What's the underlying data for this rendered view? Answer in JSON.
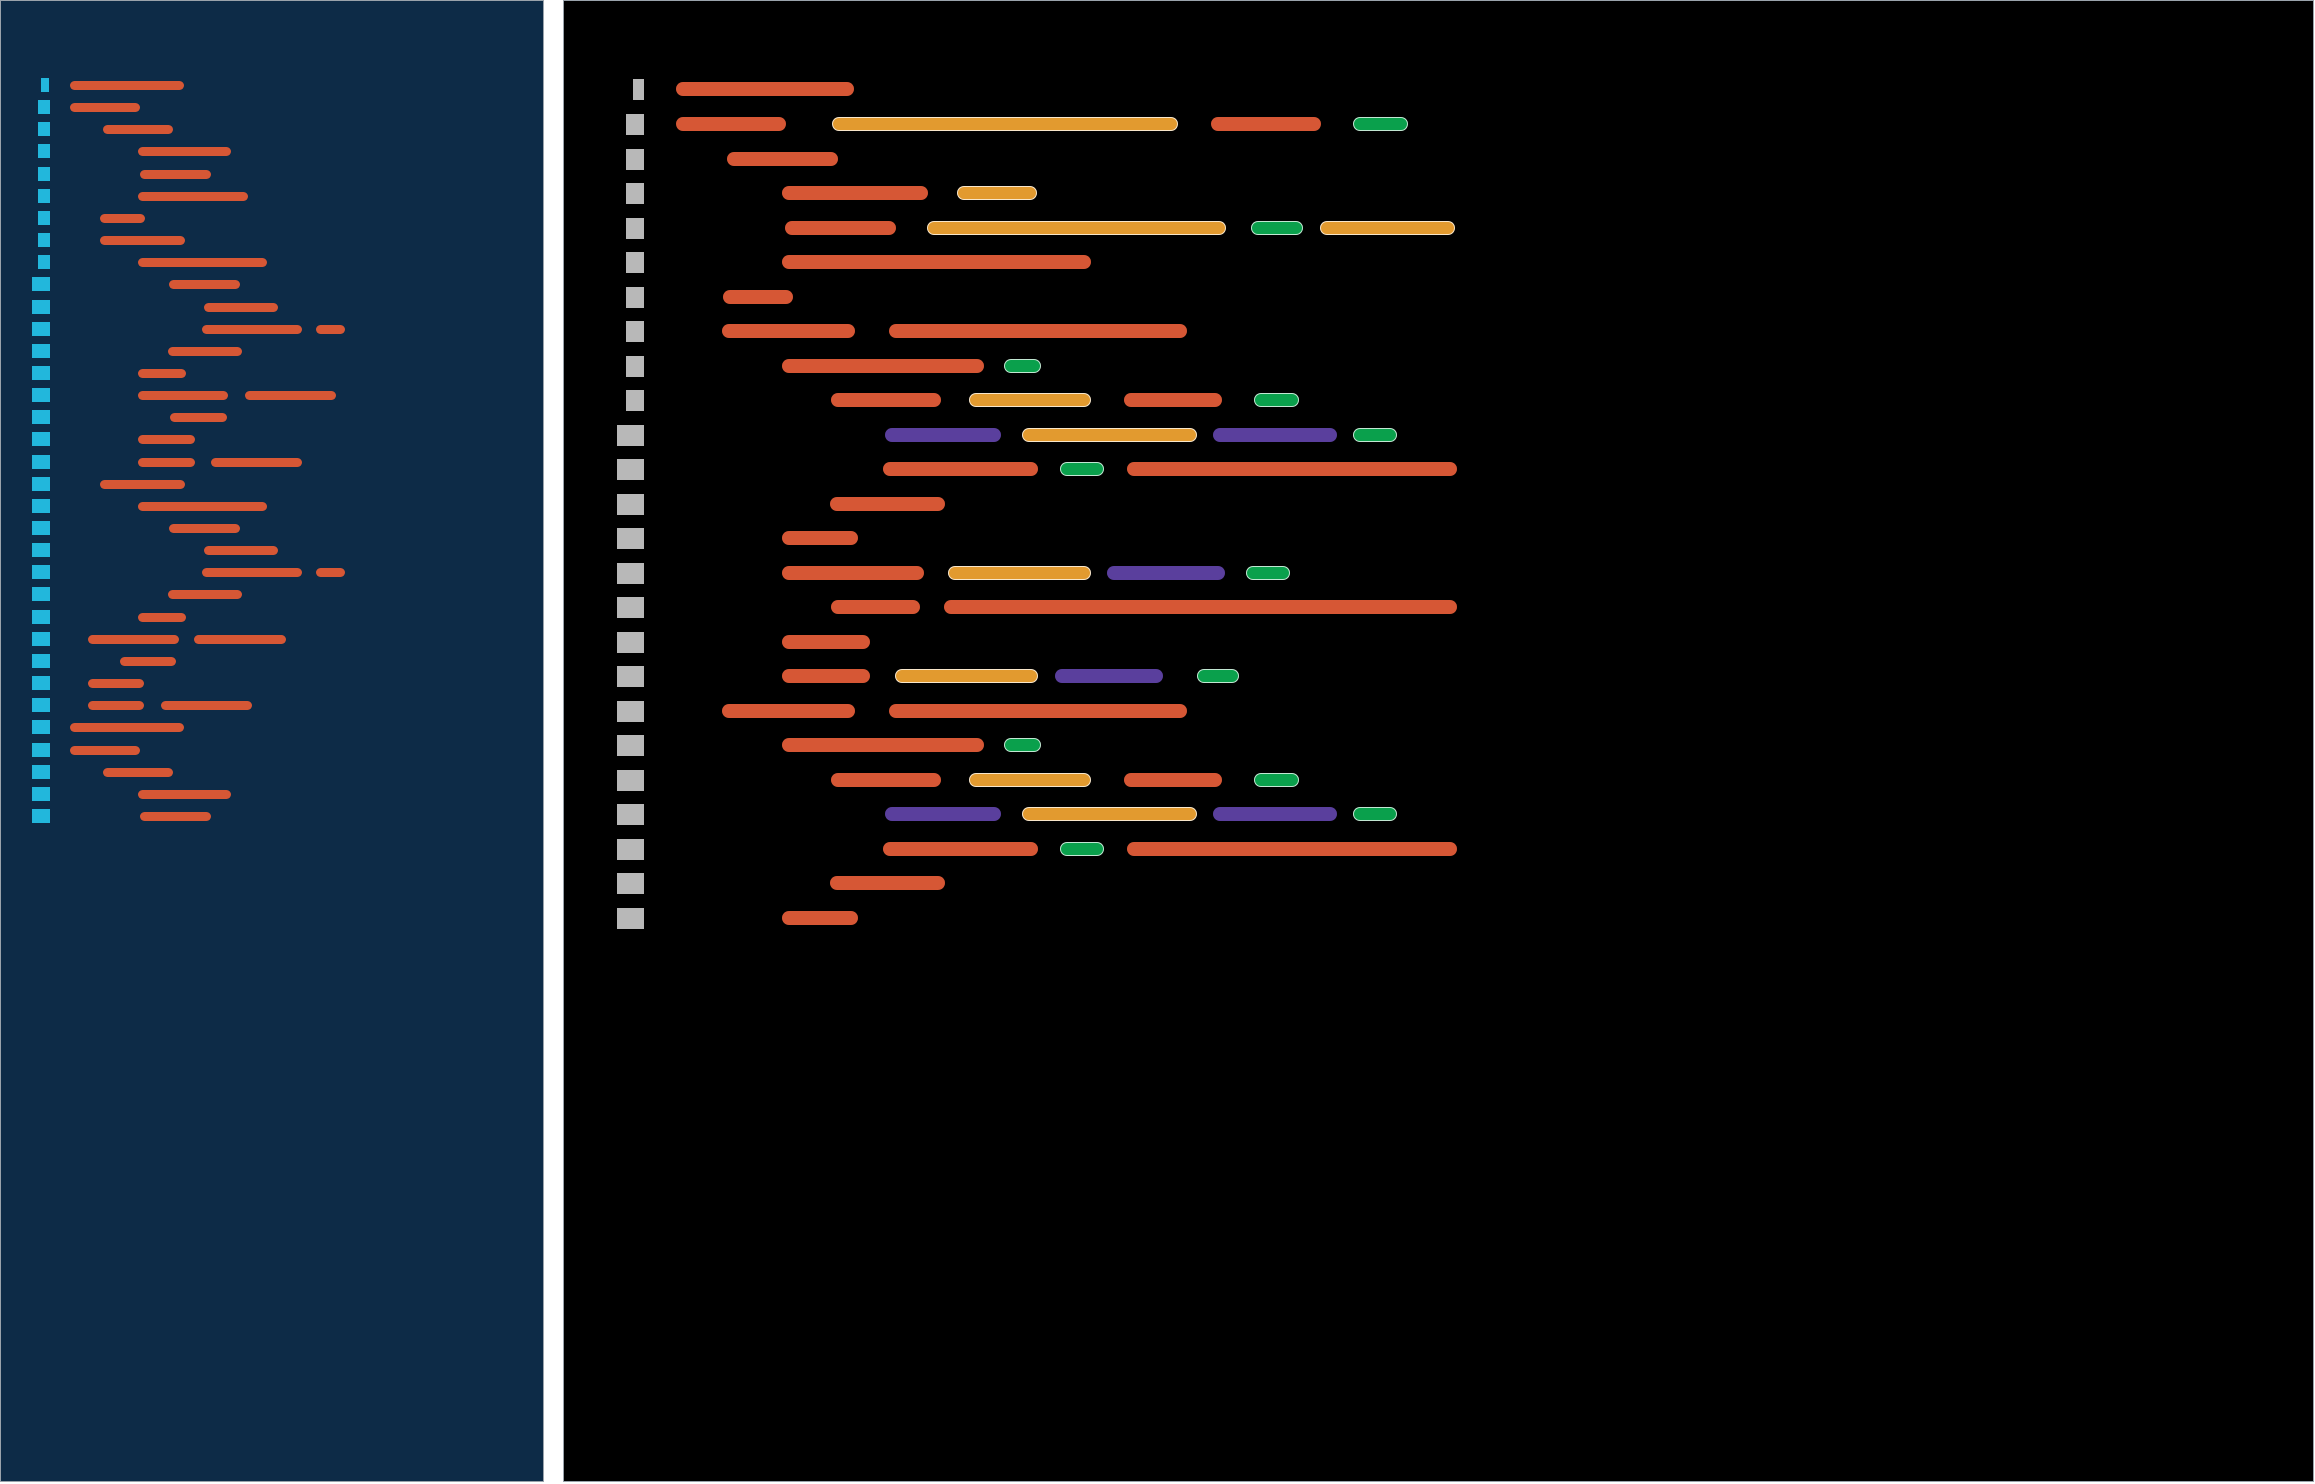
{
  "colors": {
    "minimap_background": "#0d2b47",
    "minimap_gutter": "#22b7dc",
    "editor_background": "#000000",
    "editor_gutter": "#b8b8b8",
    "red": "#d65735",
    "orange": "#e29a2f",
    "green": "#0aa04c",
    "purple": "#5a3f9d"
  },
  "minimap": {
    "line_count": 34,
    "segments_per_line": [
      1,
      1,
      1,
      1,
      1,
      1,
      1,
      1,
      1,
      1,
      1,
      2,
      1,
      1,
      2,
      1,
      1,
      2,
      1,
      1,
      1,
      1,
      2,
      1,
      1,
      2,
      1,
      1,
      2,
      1,
      1,
      1,
      1,
      1
    ]
  },
  "editor": {
    "line_count": 25,
    "segments_per_line": [
      [
        "red"
      ],
      [
        "red",
        "orange",
        "red",
        "green"
      ],
      [
        "red"
      ],
      [
        "red",
        "orange"
      ],
      [
        "red",
        "orange",
        "green",
        "orange"
      ],
      [
        "red"
      ],
      [
        "red"
      ],
      [
        "red",
        "red"
      ],
      [
        "red",
        "green"
      ],
      [
        "red",
        "orange",
        "red",
        "green"
      ],
      [
        "purple",
        "orange",
        "purple",
        "green"
      ],
      [
        "red",
        "green",
        "red"
      ],
      [
        "red"
      ],
      [
        "red"
      ],
      [
        "red",
        "orange",
        "purple",
        "green"
      ],
      [
        "red",
        "red"
      ],
      [
        "red"
      ],
      [
        "red",
        "orange",
        "purple",
        "green"
      ],
      [
        "red",
        "red"
      ],
      [
        "red",
        "green"
      ],
      [
        "red",
        "orange",
        "red",
        "green"
      ],
      [
        "purple",
        "orange",
        "purple",
        "green"
      ],
      [
        "red",
        "green",
        "red"
      ],
      [
        "red"
      ],
      [
        "red"
      ]
    ]
  }
}
